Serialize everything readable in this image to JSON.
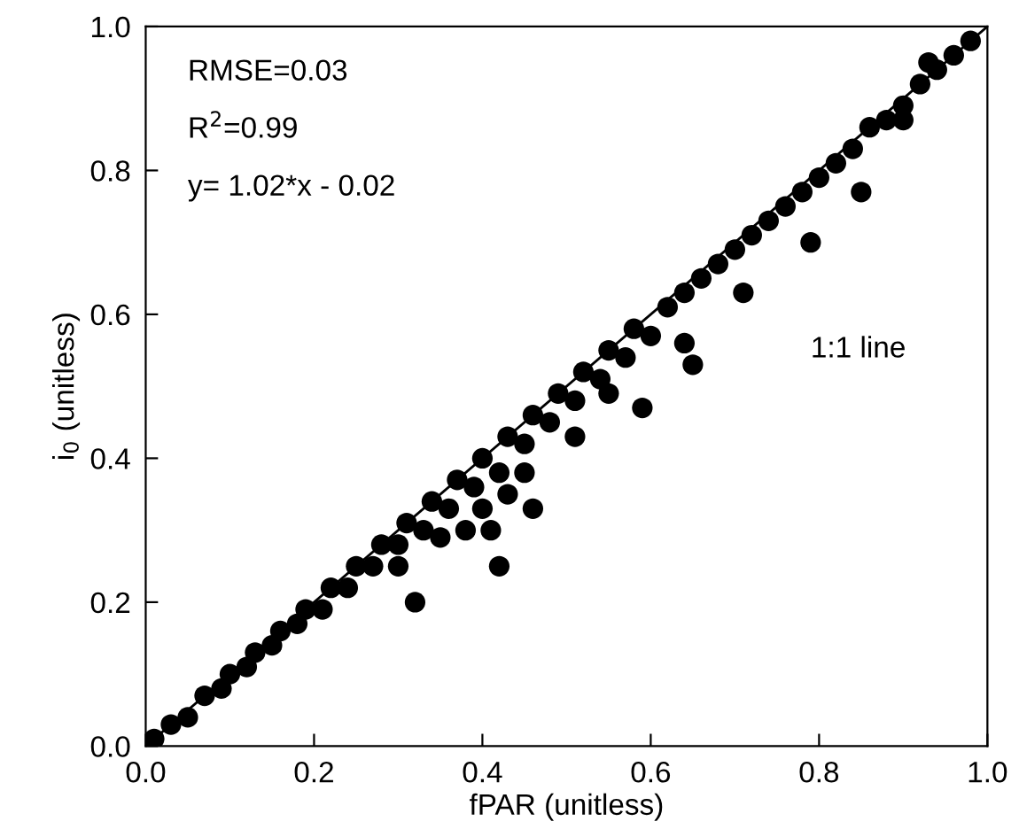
{
  "chart_data": {
    "type": "scatter",
    "xlabel": "fPAR (unitless)",
    "ylabel": "i$_{0}$ (unitless)",
    "xlim": [
      0,
      1
    ],
    "ylim": [
      0,
      1
    ],
    "xticks": [
      {
        "value": 0,
        "label": "0.0"
      },
      {
        "value": 0.2,
        "label": "0.2"
      },
      {
        "value": 0.4,
        "label": "0.4"
      },
      {
        "value": 0.6,
        "label": "0.6"
      },
      {
        "value": 0.8,
        "label": "0.8"
      },
      {
        "value": 1,
        "label": "1.0"
      }
    ],
    "yticks": [
      {
        "value": 0,
        "label": "0.0"
      },
      {
        "value": 0.2,
        "label": "0.2"
      },
      {
        "value": 0.4,
        "label": "0.4"
      },
      {
        "value": 0.6,
        "label": "0.6"
      },
      {
        "value": 0.8,
        "label": "0.8"
      },
      {
        "value": 1,
        "label": "1.0"
      }
    ],
    "grid": false,
    "marker": "circle",
    "series": [
      {
        "color": "#000000",
        "x": [
          0.01,
          0.03,
          0.05,
          0.07,
          0.09,
          0.1,
          0.12,
          0.13,
          0.15,
          0.16,
          0.18,
          0.19,
          0.21,
          0.22,
          0.24,
          0.25,
          0.27,
          0.28,
          0.3,
          0.31,
          0.33,
          0.34,
          0.36,
          0.37,
          0.39,
          0.4,
          0.42,
          0.43,
          0.45,
          0.46,
          0.48,
          0.49,
          0.51,
          0.52,
          0.54,
          0.55,
          0.57,
          0.58,
          0.6,
          0.62,
          0.64,
          0.66,
          0.68,
          0.7,
          0.72,
          0.74,
          0.76,
          0.78,
          0.8,
          0.82,
          0.84,
          0.86,
          0.88,
          0.9,
          0.92,
          0.94,
          0.96,
          0.98,
          0.3,
          0.35,
          0.4,
          0.45,
          0.38,
          0.43,
          0.65,
          0.64,
          0.71,
          0.59,
          0.55,
          0.42,
          0.32,
          0.46,
          0.41,
          0.51,
          0.79,
          0.85,
          0.9,
          0.93
        ],
        "values": [
          0.01,
          0.03,
          0.04,
          0.07,
          0.08,
          0.1,
          0.11,
          0.13,
          0.14,
          0.16,
          0.17,
          0.19,
          0.19,
          0.22,
          0.22,
          0.25,
          0.25,
          0.28,
          0.28,
          0.31,
          0.3,
          0.34,
          0.33,
          0.37,
          0.36,
          0.4,
          0.38,
          0.43,
          0.42,
          0.46,
          0.45,
          0.49,
          0.48,
          0.52,
          0.51,
          0.55,
          0.54,
          0.58,
          0.57,
          0.61,
          0.63,
          0.65,
          0.67,
          0.69,
          0.71,
          0.73,
          0.75,
          0.77,
          0.79,
          0.81,
          0.83,
          0.86,
          0.87,
          0.89,
          0.92,
          0.94,
          0.96,
          0.98,
          0.25,
          0.29,
          0.33,
          0.38,
          0.3,
          0.35,
          0.53,
          0.56,
          0.63,
          0.47,
          0.49,
          0.25,
          0.2,
          0.33,
          0.3,
          0.43,
          0.7,
          0.77,
          0.87,
          0.95
        ]
      },
      {
        "type": "line",
        "color": "#000000",
        "x": [
          0,
          1
        ],
        "values": [
          0,
          1
        ],
        "line_style": "solid",
        "marker": "none"
      }
    ],
    "annotations": [
      "RMSE=0.03",
      "R$^{2}$=0.99",
      "y= 1.02*x - 0.02",
      "1:1 line"
    ]
  }
}
